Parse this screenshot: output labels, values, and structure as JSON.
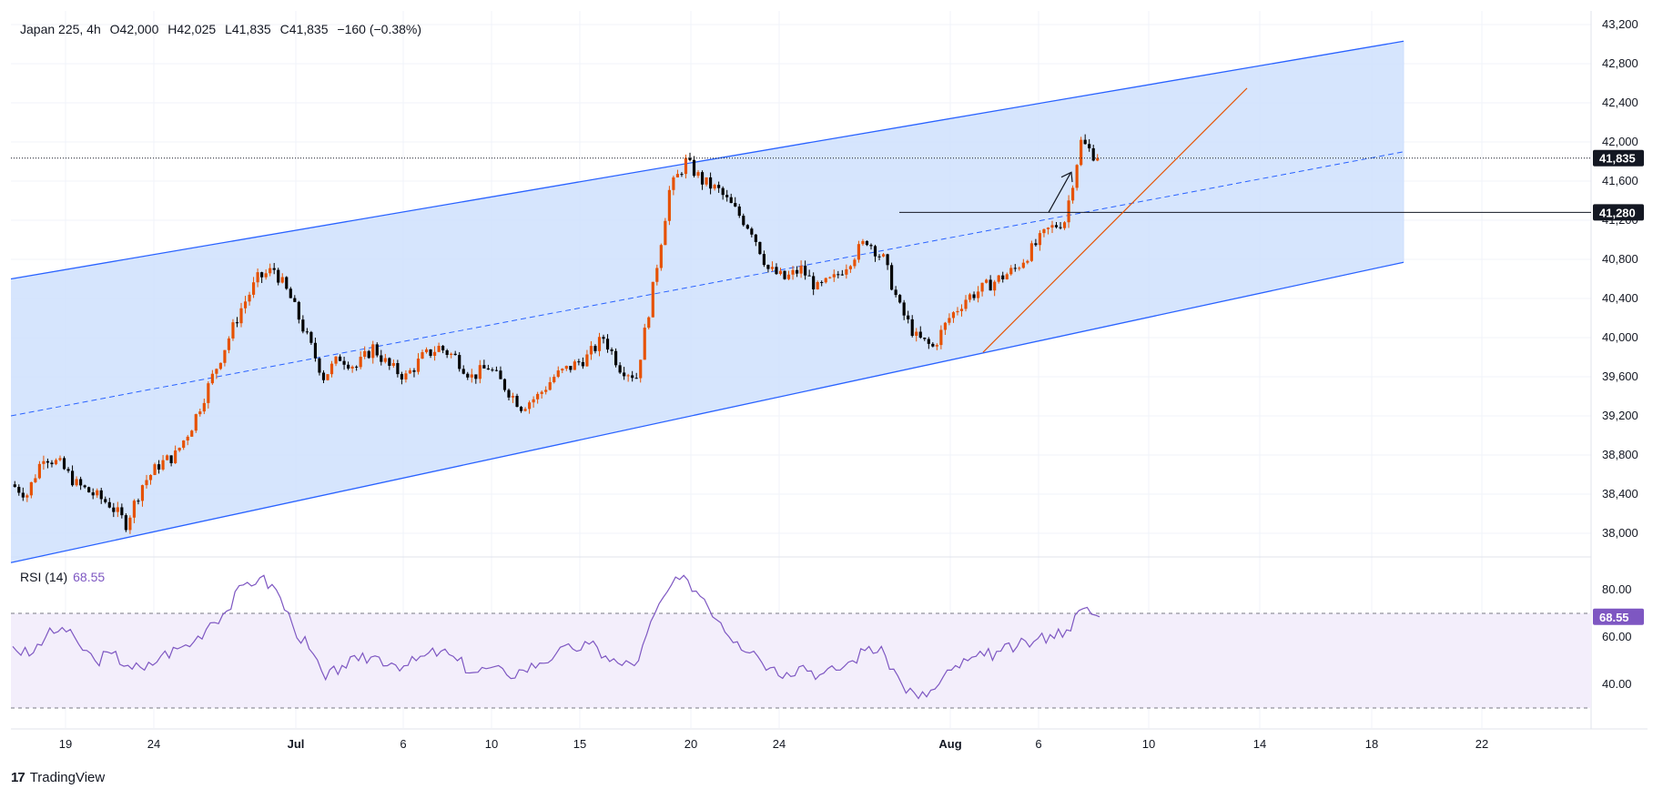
{
  "legend": {
    "symbol": "Japan 225, 4h",
    "open": "O42,000",
    "high": "H42,025",
    "low": "L41,835",
    "close": "C41,835",
    "change": "−160 (−0.38%)"
  },
  "rsi": {
    "label": "RSI (14)",
    "value": "68.55"
  },
  "brand": {
    "logo": "17",
    "name": "TradingView"
  },
  "colors": {
    "up": "#e65100",
    "down": "#000000",
    "channel_line": "#2962ff",
    "channel_fill": "#cfe0fd",
    "rsi_line": "#7e57c2",
    "rsi_band": "#f3eefb",
    "trend_line": "#e65100"
  },
  "price_tags": {
    "last": "41,835",
    "level": "41,280",
    "rsi": "68.55"
  },
  "chart_data": [
    {
      "type": "candlestick",
      "title": "Japan 225, 4h",
      "ylim": [
        37800,
        43200
      ],
      "y_ticks": [
        "38,000",
        "38,400",
        "38,800",
        "39,200",
        "39,600",
        "40,000",
        "40,400",
        "40,800",
        "41,200",
        "41,600",
        "42,000",
        "42,400",
        "42,800",
        "43,200"
      ],
      "x_ticks": [
        "19",
        "24",
        "Jul",
        "6",
        "10",
        "15",
        "20",
        "24",
        "Aug",
        "6",
        "10",
        "14",
        "18",
        "22"
      ],
      "close_path": [
        38500,
        38400,
        38800,
        38700,
        38500,
        38400,
        38300,
        38100,
        38500,
        38700,
        38800,
        39100,
        39500,
        39900,
        40300,
        40600,
        40700,
        40400,
        40000,
        39600,
        39800,
        39700,
        39900,
        39700,
        39600,
        39800,
        39900,
        39800,
        39600,
        39700,
        39500,
        39300,
        39400,
        39600,
        39700,
        39800,
        40000,
        39700,
        39600,
        40500,
        41500,
        41800,
        41600,
        41500,
        41300,
        41100,
        40700,
        40600,
        40700,
        40500,
        40600,
        40800,
        41000,
        40800,
        40300,
        40000,
        39900,
        40200,
        40400,
        40500,
        40600,
        40700,
        40900,
        41100,
        41200,
        42000,
        41835
      ],
      "last_close": 41835,
      "horizontal_level": 41280,
      "channel_lines": [
        {
          "name": "upper",
          "x0": "start",
          "y0": 40600,
          "x1": "Aug 19",
          "y1": 43030
        },
        {
          "name": "middle",
          "x0": "start",
          "y0": 39200,
          "x1": "Aug 19",
          "y1": 41900
        },
        {
          "name": "lower",
          "x0": "start",
          "y0": 37700,
          "x1": "Aug 19",
          "y1": 40770
        }
      ]
    },
    {
      "type": "line",
      "title": "RSI (14)",
      "ylim": [
        35,
        90
      ],
      "y_ticks": [
        "80.00",
        "60.00",
        "40.00"
      ],
      "band": [
        30,
        70
      ],
      "last_value": 68.55,
      "values": [
        56,
        52,
        60,
        64,
        57,
        50,
        53,
        48,
        46,
        52,
        55,
        58,
        66,
        71,
        82,
        85,
        80,
        65,
        55,
        42,
        48,
        50,
        52,
        49,
        48,
        52,
        54,
        50,
        45,
        47,
        44,
        46,
        49,
        53,
        55,
        57,
        52,
        48,
        50,
        70,
        82,
        84,
        76,
        66,
        58,
        54,
        47,
        45,
        48,
        44,
        46,
        50,
        56,
        52,
        40,
        34,
        38,
        46,
        50,
        52,
        54,
        56,
        58,
        61,
        63,
        72,
        68.55
      ]
    }
  ]
}
